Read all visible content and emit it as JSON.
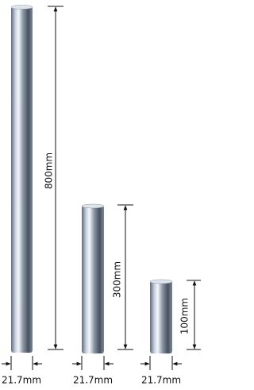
{
  "rods": [
    {
      "height_label": "800mm",
      "diameter_label": "21.7mm"
    },
    {
      "height_label": "300mm",
      "diameter_label": "21.7mm"
    },
    {
      "height_label": "100mm",
      "diameter_label": "21.7mm"
    }
  ]
}
